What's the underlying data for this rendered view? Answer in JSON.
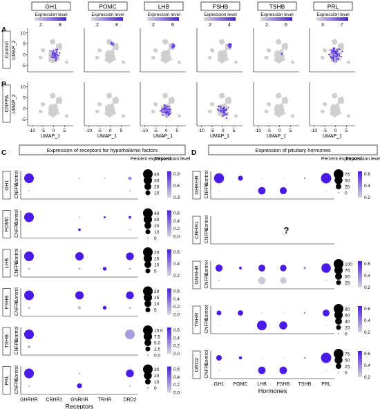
{
  "panel_labels": {
    "A": "A",
    "B": "B",
    "C": "C",
    "D": "D"
  },
  "umap": {
    "genes": [
      "GH1",
      "POMC",
      "LHB",
      "FSHB",
      "TSHB",
      "PRL"
    ],
    "legend_title": "Expression level",
    "legend_ticks": [
      [
        "2",
        "8"
      ],
      [
        "2",
        "8"
      ],
      [
        "2",
        "6"
      ],
      [
        "2",
        "4"
      ],
      [
        "2",
        "6"
      ],
      [
        "3",
        "7"
      ]
    ],
    "rows": [
      "Control",
      "CNFPA"
    ],
    "y_label": "UMAP_2",
    "x_label": "UMAP_1",
    "y_ticks": [
      "10",
      "5",
      "0",
      "-5"
    ],
    "x_ticks": [
      "-10",
      "-5",
      "0",
      "5"
    ],
    "colors": {
      "low": "#d8d8d8",
      "high": "#4a1ae8",
      "cell": "#cfcfcf"
    }
  },
  "panel_c": {
    "title": "Expression of receptors for hypothalamic factors",
    "x_title": "Receptors",
    "columns": [
      "GHRHR",
      "CRHR1",
      "GNRHR",
      "TRHR",
      "DRD2"
    ],
    "group_labels": [
      "Control",
      "CNFPA"
    ],
    "legend_pct_title": "Percent expressed",
    "legend_exp_title": "Expression level"
  },
  "panel_d": {
    "title": "Expression of pituitary hormones",
    "x_title": "Hormones",
    "columns": [
      "GH1",
      "POMC",
      "LHB",
      "FSHB",
      "TSHB",
      "PRL"
    ],
    "group_labels": [
      "Control",
      "CNFPA"
    ],
    "missing_mark": "?",
    "legend_pct_title": "Percent expressed",
    "legend_exp_title": "Expression level"
  },
  "chart_data": [
    {
      "type": "scatter",
      "title": "Expression of receptors for hypothalamic factors",
      "xlabel": "Receptors",
      "categories": [
        "GHRHR",
        "CRHR1",
        "GNRHR",
        "TRHR",
        "DRD2"
      ],
      "groups": [
        "Control",
        "CNFPA"
      ],
      "panels": [
        {
          "name": "GH1",
          "size_ticks": [
            "40",
            "30",
            "20",
            "10"
          ],
          "color_ticks": [
            "0.9",
            "0.6",
            "0.3"
          ],
          "pct": {
            "Control": [
              40,
              0,
              1,
              1,
              5
            ],
            "CNFPA": [
              1,
              0,
              0,
              0,
              1
            ]
          },
          "exp": {
            "Control": [
              0.9,
              0,
              0.1,
              0.1,
              0.4
            ],
            "CNFPA": [
              0.1,
              0,
              0,
              0,
              0.1
            ]
          }
        },
        {
          "name": "POMC",
          "size_ticks": [
            "40",
            "30",
            "20",
            "10",
            "0"
          ],
          "color_ticks": [
            "0.6",
            "0.4",
            "0.2",
            "0.0"
          ],
          "pct": {
            "Control": [
              40,
              0,
              1,
              2,
              3
            ],
            "CNFPA": [
              0,
              0,
              3,
              0,
              1
            ]
          },
          "exp": {
            "Control": [
              0.6,
              0,
              0.1,
              0.5,
              0.6
            ],
            "CNFPA": [
              0,
              0,
              0.6,
              0,
              0.1
            ]
          }
        },
        {
          "name": "LHB",
          "size_ticks": [
            "20",
            "15",
            "10",
            "5"
          ],
          "color_ticks": [
            "0.6",
            "0.4",
            "0.2"
          ],
          "pct": {
            "Control": [
              20,
              0,
              15,
              0,
              13
            ],
            "CNFPA": [
              1,
              0,
              1,
              3,
              1
            ]
          },
          "exp": {
            "Control": [
              0.6,
              0,
              0.6,
              0,
              0.6
            ],
            "CNFPA": [
              0.1,
              0,
              0.1,
              0.6,
              0.1
            ]
          }
        },
        {
          "name": "FSHB",
          "size_ticks": [
            "20",
            "15",
            "10",
            "5"
          ],
          "color_ticks": [
            "0.6",
            "0.4",
            "0.2",
            "0.0"
          ],
          "pct": {
            "Control": [
              20,
              0,
              15,
              0,
              13
            ],
            "CNFPA": [
              1,
              0,
              2,
              3,
              1
            ]
          },
          "exp": {
            "Control": [
              0.6,
              0,
              0.6,
              0,
              0.6
            ],
            "CNFPA": [
              0.1,
              0,
              0.1,
              0.6,
              0.1
            ]
          }
        },
        {
          "name": "TSHB",
          "size_ticks": [
            "10.0",
            "7.5",
            "5.0",
            "2.5",
            "0.0"
          ],
          "color_ticks": [
            "0.6",
            "0.4",
            "0.2",
            "0.0"
          ],
          "pct": {
            "Control": [
              10,
              0,
              0,
              0,
              10
            ],
            "CNFPA": [
              1,
              0,
              0,
              0,
              0
            ]
          },
          "exp": {
            "Control": [
              0.6,
              0,
              0,
              0,
              0.2
            ],
            "CNFPA": [
              0.1,
              0,
              0,
              0,
              0
            ]
          }
        },
        {
          "name": "PRL",
          "size_ticks": [
            "30",
            "20",
            "10",
            "0"
          ],
          "color_ticks": [
            "0.6",
            "0.4",
            "0.2",
            "0.0"
          ],
          "pct": {
            "Control": [
              30,
              0,
              1,
              0,
              20
            ],
            "CNFPA": [
              1,
              0,
              8,
              0,
              1
            ]
          },
          "exp": {
            "Control": [
              0.6,
              0,
              0.1,
              0,
              0.6
            ],
            "CNFPA": [
              0.1,
              0,
              0.6,
              0,
              0.1
            ]
          }
        }
      ]
    },
    {
      "type": "scatter",
      "title": "Expression of pituitary hormones",
      "xlabel": "Hormones",
      "categories": [
        "GH1",
        "POMC",
        "LHB",
        "FSHB",
        "TSHB",
        "PRL"
      ],
      "groups": [
        "Control",
        "CNFPA"
      ],
      "panels": [
        {
          "name": "GHRHR",
          "size_ticks": [
            "75",
            "50",
            "25",
            "0"
          ],
          "color_ticks": [
            "0.6",
            "0.4",
            "0.2"
          ],
          "pct": {
            "Control": [
              80,
              20,
              1,
              1,
              2,
              85
            ],
            "CNFPA": [
              1,
              0,
              45,
              40,
              0,
              1
            ]
          },
          "exp": {
            "Control": [
              0.6,
              0.6,
              0.1,
              0.1,
              0.3,
              0.6
            ],
            "CNFPA": [
              0.1,
              0,
              0.6,
              0.6,
              0,
              0.1
            ]
          }
        },
        {
          "name": "CRHR1",
          "size_ticks": [],
          "color_ticks": [],
          "pct": {
            "Control": [
              0,
              0,
              0,
              0,
              0,
              0
            ],
            "CNFPA": [
              0,
              0,
              0,
              0,
              0,
              0
            ]
          },
          "exp": {
            "Control": [
              0,
              0,
              0,
              0,
              0,
              0
            ],
            "CNFPA": [
              0,
              0,
              0,
              0,
              0,
              0
            ]
          }
        },
        {
          "name": "GNRHR",
          "size_ticks": [
            "100",
            "75",
            "50",
            "25"
          ],
          "color_ticks": [
            "0.6",
            "0.4",
            "0.2"
          ],
          "pct": {
            "Control": [
              55,
              8,
              50,
              45,
              5,
              95
            ],
            "CNFPA": [
              2,
              0,
              60,
              45,
              0,
              2
            ]
          },
          "exp": {
            "Control": [
              0.6,
              0.6,
              0.6,
              0.6,
              0.3,
              0.6
            ],
            "CNFPA": [
              0.1,
              0,
              0.05,
              0.05,
              0,
              0.1
            ]
          }
        },
        {
          "name": "TRHR",
          "size_ticks": [
            "80",
            "60",
            "40",
            "20",
            "0"
          ],
          "color_ticks": [
            "0.6",
            "0.4",
            "0.2"
          ],
          "pct": {
            "Control": [
              20,
              25,
              1,
              1,
              3,
              40
            ],
            "CNFPA": [
              1,
              0,
              80,
              55,
              0,
              1
            ]
          },
          "exp": {
            "Control": [
              0.6,
              0.6,
              0.1,
              0.1,
              0.2,
              0.6
            ],
            "CNFPA": [
              0.1,
              0,
              0.6,
              0.6,
              0,
              0.1
            ]
          }
        },
        {
          "name": "DRD2",
          "size_ticks": [
            "75",
            "50",
            "25",
            "0"
          ],
          "color_ticks": [
            "0.6",
            "0.4",
            "0.2"
          ],
          "pct": {
            "Control": [
              25,
              8,
              1,
              1,
              3,
              85
            ],
            "CNFPA": [
              1,
              0,
              45,
              45,
              0,
              1
            ]
          },
          "exp": {
            "Control": [
              0.6,
              0.6,
              0.1,
              0.1,
              0.2,
              0.6
            ],
            "CNFPA": [
              0.1,
              0,
              0.6,
              0.6,
              0,
              0.1
            ]
          }
        }
      ]
    }
  ]
}
